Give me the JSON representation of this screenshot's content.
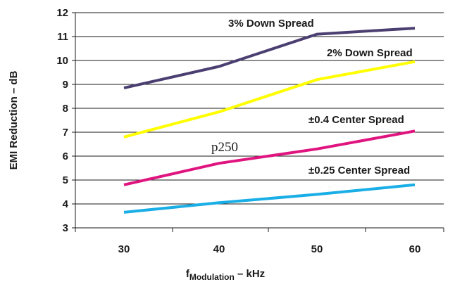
{
  "chart_data": {
    "type": "line",
    "x": [
      30,
      40,
      50,
      60
    ],
    "xlabel_main": "f",
    "xlabel_sub": "Modulation",
    "xlabel_rest": " – kHz",
    "ylabel": "EMI Reduction – dB",
    "ylim": [
      3,
      12
    ],
    "yticks": [
      "3",
      "4",
      "5",
      "6",
      "7",
      "8",
      "9",
      "10",
      "11",
      "12"
    ],
    "xticks": [
      "30",
      "40",
      "50",
      "60"
    ],
    "grid": "horizontal",
    "series": [
      {
        "name": "3% Down Spread",
        "color": "#4b3f72",
        "values": [
          8.85,
          9.75,
          11.1,
          11.35
        ]
      },
      {
        "name": "2% Down Spread",
        "color": "#ffff00",
        "values": [
          6.8,
          7.85,
          9.2,
          9.95
        ]
      },
      {
        "name": "±0.4 Center Spread",
        "color": "#e0147f",
        "values": [
          4.8,
          5.7,
          6.3,
          7.05
        ]
      },
      {
        "name": "±0.25 Center Spread",
        "color": "#1aaee6",
        "values": [
          3.65,
          4.05,
          4.4,
          4.8
        ]
      }
    ],
    "annotations": [
      {
        "text": "p250"
      }
    ]
  }
}
